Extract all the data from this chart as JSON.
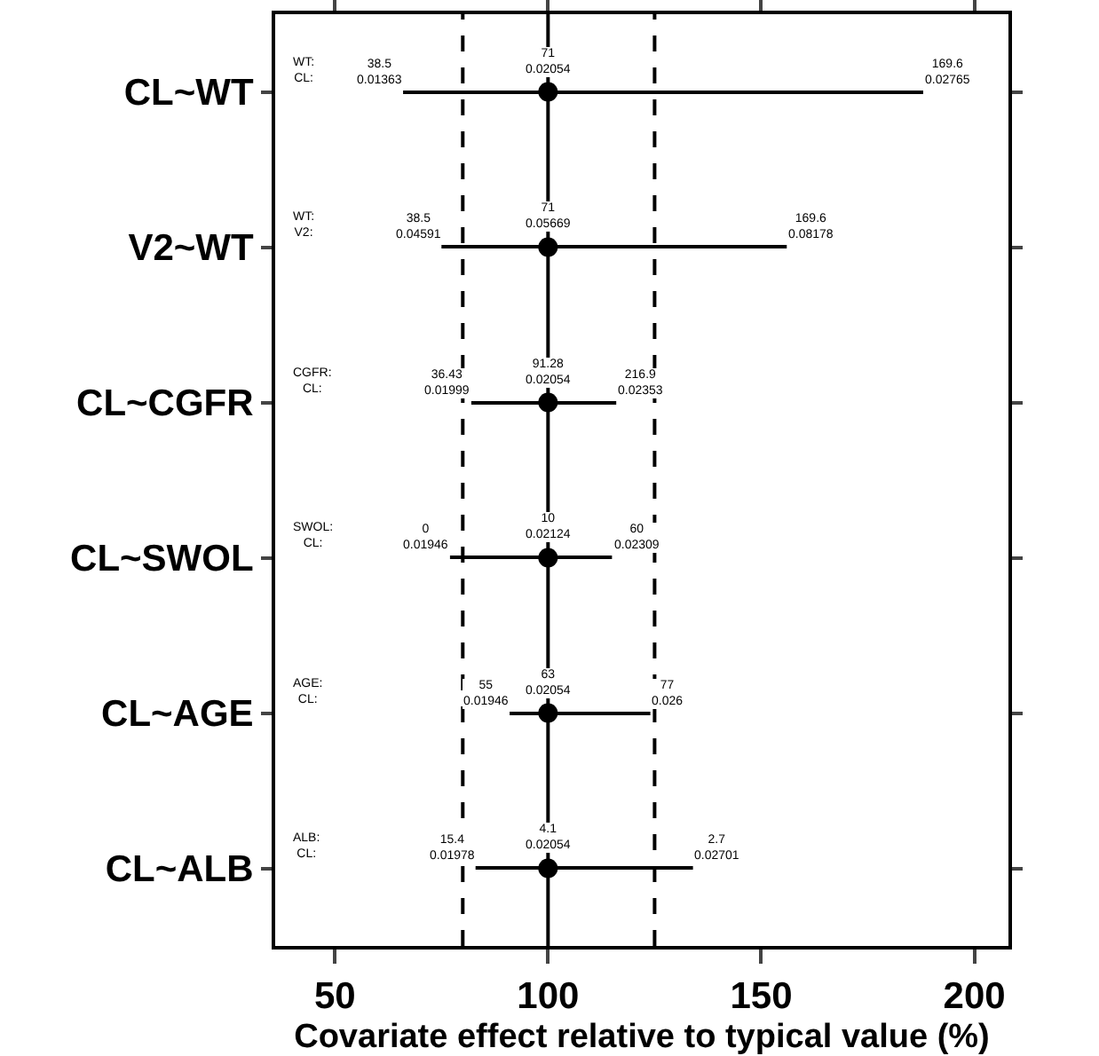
{
  "chart_data": {
    "type": "bar",
    "orientation": "horizontal",
    "xlabel": "Covariate effect relative to typical value (%)",
    "categories": [
      "CL~WT",
      "V2~WT",
      "CL~CGFR",
      "CL~SWOL",
      "CL~AGE",
      "CL~ALB"
    ],
    "series": [
      {
        "color": "#000000",
        "base": [
          66,
          75,
          82,
          77,
          91,
          83
        ],
        "values": [
          122,
          81,
          34,
          38,
          33,
          51
        ]
      },
      {
        "type": "scatter",
        "color": "#000000",
        "marker": "circle",
        "values": [
          100,
          100,
          100,
          100,
          100,
          100
        ]
      }
    ],
    "grid": false,
    "xlim": [
      36,
      208
    ],
    "xticks": [
      50,
      100,
      150,
      200
    ],
    "ref_lines": [
      {
        "axis": "x",
        "value": 100,
        "line_style": "solid"
      },
      {
        "axis": "x",
        "value": 80,
        "line_style": "dashed"
      },
      {
        "axis": "x",
        "value": 125,
        "line_style": "dashed"
      }
    ],
    "annotations": [
      "WT:\nCL:",
      {
        "text": "38.5\n0.01363",
        "x": 66,
        "y": "CL~WT"
      },
      {
        "text": "71\n0.02054",
        "x": 100,
        "y": "CL~WT"
      },
      {
        "text": "169.6\n0.02765",
        "x": 188,
        "y": "CL~WT"
      },
      "WT:\nV2:",
      {
        "text": "38.5\n0.04591",
        "x": 75,
        "y": "V2~WT"
      },
      {
        "text": "71\n0.05669",
        "x": 100,
        "y": "V2~WT"
      },
      {
        "text": "169.6\n0.08178",
        "x": 156,
        "y": "V2~WT"
      },
      "CGFR:\nCL:",
      {
        "text": "36.43\n0.01999",
        "x": 82,
        "y": "CL~CGFR"
      },
      {
        "text": "91.28\n0.02054",
        "x": 100,
        "y": "CL~CGFR"
      },
      {
        "text": "216.9\n0.02353",
        "x": 116,
        "y": "CL~CGFR"
      },
      "SWOL:\nCL:",
      {
        "text": "0\n0.01946",
        "x": 77,
        "y": "CL~SWOL"
      },
      {
        "text": "10\n0.02124",
        "x": 100,
        "y": "CL~SWOL"
      },
      {
        "text": "60\n0.02309",
        "x": 115,
        "y": "CL~SWOL"
      },
      "AGE:\nCL:",
      {
        "text": "55\n0.01946",
        "x": 91,
        "y": "CL~AGE"
      },
      {
        "text": "63\n0.02054",
        "x": 100,
        "y": "CL~AGE"
      },
      {
        "text": "77\n0.026",
        "x": 124,
        "y": "CL~AGE"
      },
      "ALB:\nCL:",
      {
        "text": "15.4\n0.01978",
        "x": 83,
        "y": "CL~ALB"
      },
      {
        "text": "4.1\n0.02054",
        "x": 100,
        "y": "CL~ALB"
      },
      {
        "text": "2.7\n0.02701",
        "x": 134,
        "y": "CL~ALB"
      }
    ]
  }
}
